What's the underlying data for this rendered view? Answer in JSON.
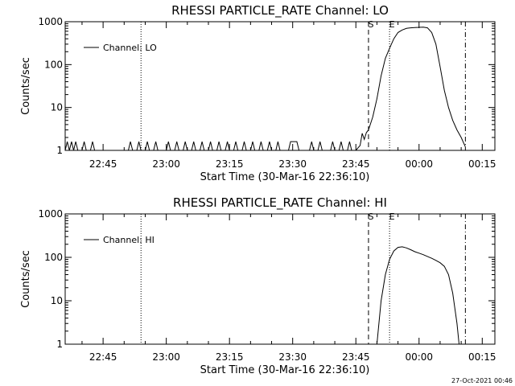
{
  "footer": "27-Oct-2021 00:46",
  "chart_data": [
    {
      "type": "line",
      "title": "RHESSI PARTICLE_RATE Channel: LO",
      "xlabel": "Start Time (30-Mar-16 22:36:10)",
      "ylabel": "Counts/sec",
      "yscale": "log",
      "ylim": [
        1,
        1000
      ],
      "yticks": [
        {
          "value": 1,
          "label": "1"
        },
        {
          "value": 10,
          "label": "10"
        },
        {
          "value": 100,
          "label": "100"
        },
        {
          "value": 1000,
          "label": "1000"
        }
      ],
      "xlim": [
        "22:36",
        "00:18"
      ],
      "xticks": [
        "22:45",
        "23:00",
        "23:15",
        "23:30",
        "23:45",
        "00:00",
        "00:15"
      ],
      "legend": {
        "label": "Channel: LO",
        "position": "top-left"
      },
      "vlines": [
        {
          "time": "22:54",
          "style": "dotted",
          "label": ""
        },
        {
          "time": "23:48",
          "style": "dashed",
          "label": "S"
        },
        {
          "time": "23:53",
          "style": "dotted",
          "label": "E"
        },
        {
          "time": "00:11",
          "style": "dashdot",
          "label": ""
        }
      ],
      "series": [
        {
          "name": "Channel: LO",
          "points": [
            [
              "22:36",
              1
            ],
            [
              "22:36.5",
              1.6
            ],
            [
              "22:37",
              1
            ],
            [
              "22:37.5",
              1.6
            ],
            [
              "22:38",
              1
            ],
            [
              "22:38.5",
              1.6
            ],
            [
              "22:39",
              1
            ],
            [
              "22:40",
              1
            ],
            [
              "22:40.5",
              1.6
            ],
            [
              "22:41",
              1
            ],
            [
              "22:42",
              1
            ],
            [
              "22:42.5",
              1.6
            ],
            [
              "22:43",
              1
            ],
            [
              "22:51",
              1
            ],
            [
              "22:51.5",
              1.6
            ],
            [
              "22:52",
              1
            ],
            [
              "22:53",
              1
            ],
            [
              "22:53.5",
              1.6
            ],
            [
              "22:54",
              1
            ],
            [
              "22:55",
              1
            ],
            [
              "22:55.5",
              1.6
            ],
            [
              "22:56",
              1
            ],
            [
              "22:57",
              1
            ],
            [
              "22:57.5",
              1.6
            ],
            [
              "22:58",
              1
            ],
            [
              "23:00",
              1
            ],
            [
              "23:00.5",
              1.6
            ],
            [
              "23:01",
              1
            ],
            [
              "23:02",
              1
            ],
            [
              "23:02.5",
              1.6
            ],
            [
              "23:03",
              1
            ],
            [
              "23:04",
              1
            ],
            [
              "23:04.5",
              1.6
            ],
            [
              "23:05",
              1
            ],
            [
              "23:06",
              1
            ],
            [
              "23:06.5",
              1.6
            ],
            [
              "23:07",
              1
            ],
            [
              "23:08",
              1
            ],
            [
              "23:08.5",
              1.6
            ],
            [
              "23:09",
              1
            ],
            [
              "23:10",
              1
            ],
            [
              "23:10.5",
              1.6
            ],
            [
              "23:11",
              1
            ],
            [
              "23:12",
              1
            ],
            [
              "23:12.5",
              1.6
            ],
            [
              "23:13",
              1
            ],
            [
              "23:14",
              1
            ],
            [
              "23:14.5",
              1.6
            ],
            [
              "23:15",
              1
            ],
            [
              "23:16",
              1
            ],
            [
              "23:16.5",
              1.6
            ],
            [
              "23:17",
              1
            ],
            [
              "23:18",
              1
            ],
            [
              "23:18.5",
              1.6
            ],
            [
              "23:19",
              1
            ],
            [
              "23:20",
              1
            ],
            [
              "23:20.5",
              1.6
            ],
            [
              "23:21",
              1
            ],
            [
              "23:22",
              1
            ],
            [
              "23:22.5",
              1.6
            ],
            [
              "23:23",
              1
            ],
            [
              "23:24",
              1
            ],
            [
              "23:24.5",
              1.6
            ],
            [
              "23:25",
              1
            ],
            [
              "23:26",
              1
            ],
            [
              "23:26.5",
              1.6
            ],
            [
              "23:27",
              1
            ],
            [
              "23:29",
              1
            ],
            [
              "23:29.5",
              1.6
            ],
            [
              "23:31",
              1.6
            ],
            [
              "23:31.5",
              1
            ],
            [
              "23:34",
              1
            ],
            [
              "23:34.5",
              1.6
            ],
            [
              "23:35",
              1
            ],
            [
              "23:36",
              1
            ],
            [
              "23:36.5",
              1.6
            ],
            [
              "23:37",
              1
            ],
            [
              "23:39",
              1
            ],
            [
              "23:39.5",
              1.6
            ],
            [
              "23:40",
              1
            ],
            [
              "23:41",
              1
            ],
            [
              "23:41.5",
              1.6
            ],
            [
              "23:42",
              1
            ],
            [
              "23:43",
              1
            ],
            [
              "23:43.5",
              1.6
            ],
            [
              "23:44",
              1
            ],
            [
              "23:45",
              1
            ],
            [
              "23:46",
              1.3
            ],
            [
              "23:46.5",
              2.5
            ],
            [
              "23:47",
              1.8
            ],
            [
              "23:47.5",
              2.6
            ],
            [
              "23:48",
              3
            ],
            [
              "23:49",
              6
            ],
            [
              "23:50",
              16
            ],
            [
              "23:51",
              55
            ],
            [
              "23:52",
              140
            ],
            [
              "23:53",
              240
            ],
            [
              "23:54",
              400
            ],
            [
              "23:55",
              560
            ],
            [
              "23:56",
              640
            ],
            [
              "23:57",
              700
            ],
            [
              "23:58",
              720
            ],
            [
              "23:59",
              730
            ],
            [
              "00:00",
              740
            ],
            [
              "00:01",
              750
            ],
            [
              "00:02",
              720
            ],
            [
              "00:03",
              560
            ],
            [
              "00:04",
              300
            ],
            [
              "00:05",
              90
            ],
            [
              "00:06",
              25
            ],
            [
              "00:07",
              10
            ],
            [
              "00:08",
              5
            ],
            [
              "00:09",
              3
            ],
            [
              "00:10",
              2
            ],
            [
              "00:11",
              1.2
            ]
          ]
        }
      ]
    },
    {
      "type": "line",
      "title": "RHESSI PARTICLE_RATE Channel: HI",
      "xlabel": "Start Time (30-Mar-16 22:36:10)",
      "ylabel": "Counts/sec",
      "yscale": "log",
      "ylim": [
        1,
        1000
      ],
      "yticks": [
        {
          "value": 1,
          "label": "1"
        },
        {
          "value": 10,
          "label": "10"
        },
        {
          "value": 100,
          "label": "100"
        },
        {
          "value": 1000,
          "label": "1000"
        }
      ],
      "xlim": [
        "22:36",
        "00:18"
      ],
      "xticks": [
        "22:45",
        "23:00",
        "23:15",
        "23:30",
        "23:45",
        "00:00",
        "00:15"
      ],
      "legend": {
        "label": "Channel: HI",
        "position": "top-left"
      },
      "vlines": [
        {
          "time": "22:54",
          "style": "dotted",
          "label": ""
        },
        {
          "time": "23:48",
          "style": "dashed",
          "label": "S"
        },
        {
          "time": "23:53",
          "style": "dotted",
          "label": "E"
        },
        {
          "time": "00:11",
          "style": "dashdot",
          "label": ""
        }
      ],
      "series": [
        {
          "name": "Channel: HI",
          "points": [
            [
              "23:50",
              1
            ],
            [
              "23:51",
              10
            ],
            [
              "23:52",
              40
            ],
            [
              "23:53",
              90
            ],
            [
              "23:54",
              140
            ],
            [
              "23:55",
              170
            ],
            [
              "23:56",
              175
            ],
            [
              "23:57",
              165
            ],
            [
              "23:58",
              150
            ],
            [
              "23:59",
              135
            ],
            [
              "00:00",
              125
            ],
            [
              "00:01",
              115
            ],
            [
              "00:02",
              105
            ],
            [
              "00:03",
              95
            ],
            [
              "00:04",
              85
            ],
            [
              "00:05",
              75
            ],
            [
              "00:06",
              62
            ],
            [
              "00:07",
              40
            ],
            [
              "00:08",
              15
            ],
            [
              "00:09",
              3
            ],
            [
              "00:09.5",
              1
            ]
          ]
        }
      ]
    }
  ]
}
